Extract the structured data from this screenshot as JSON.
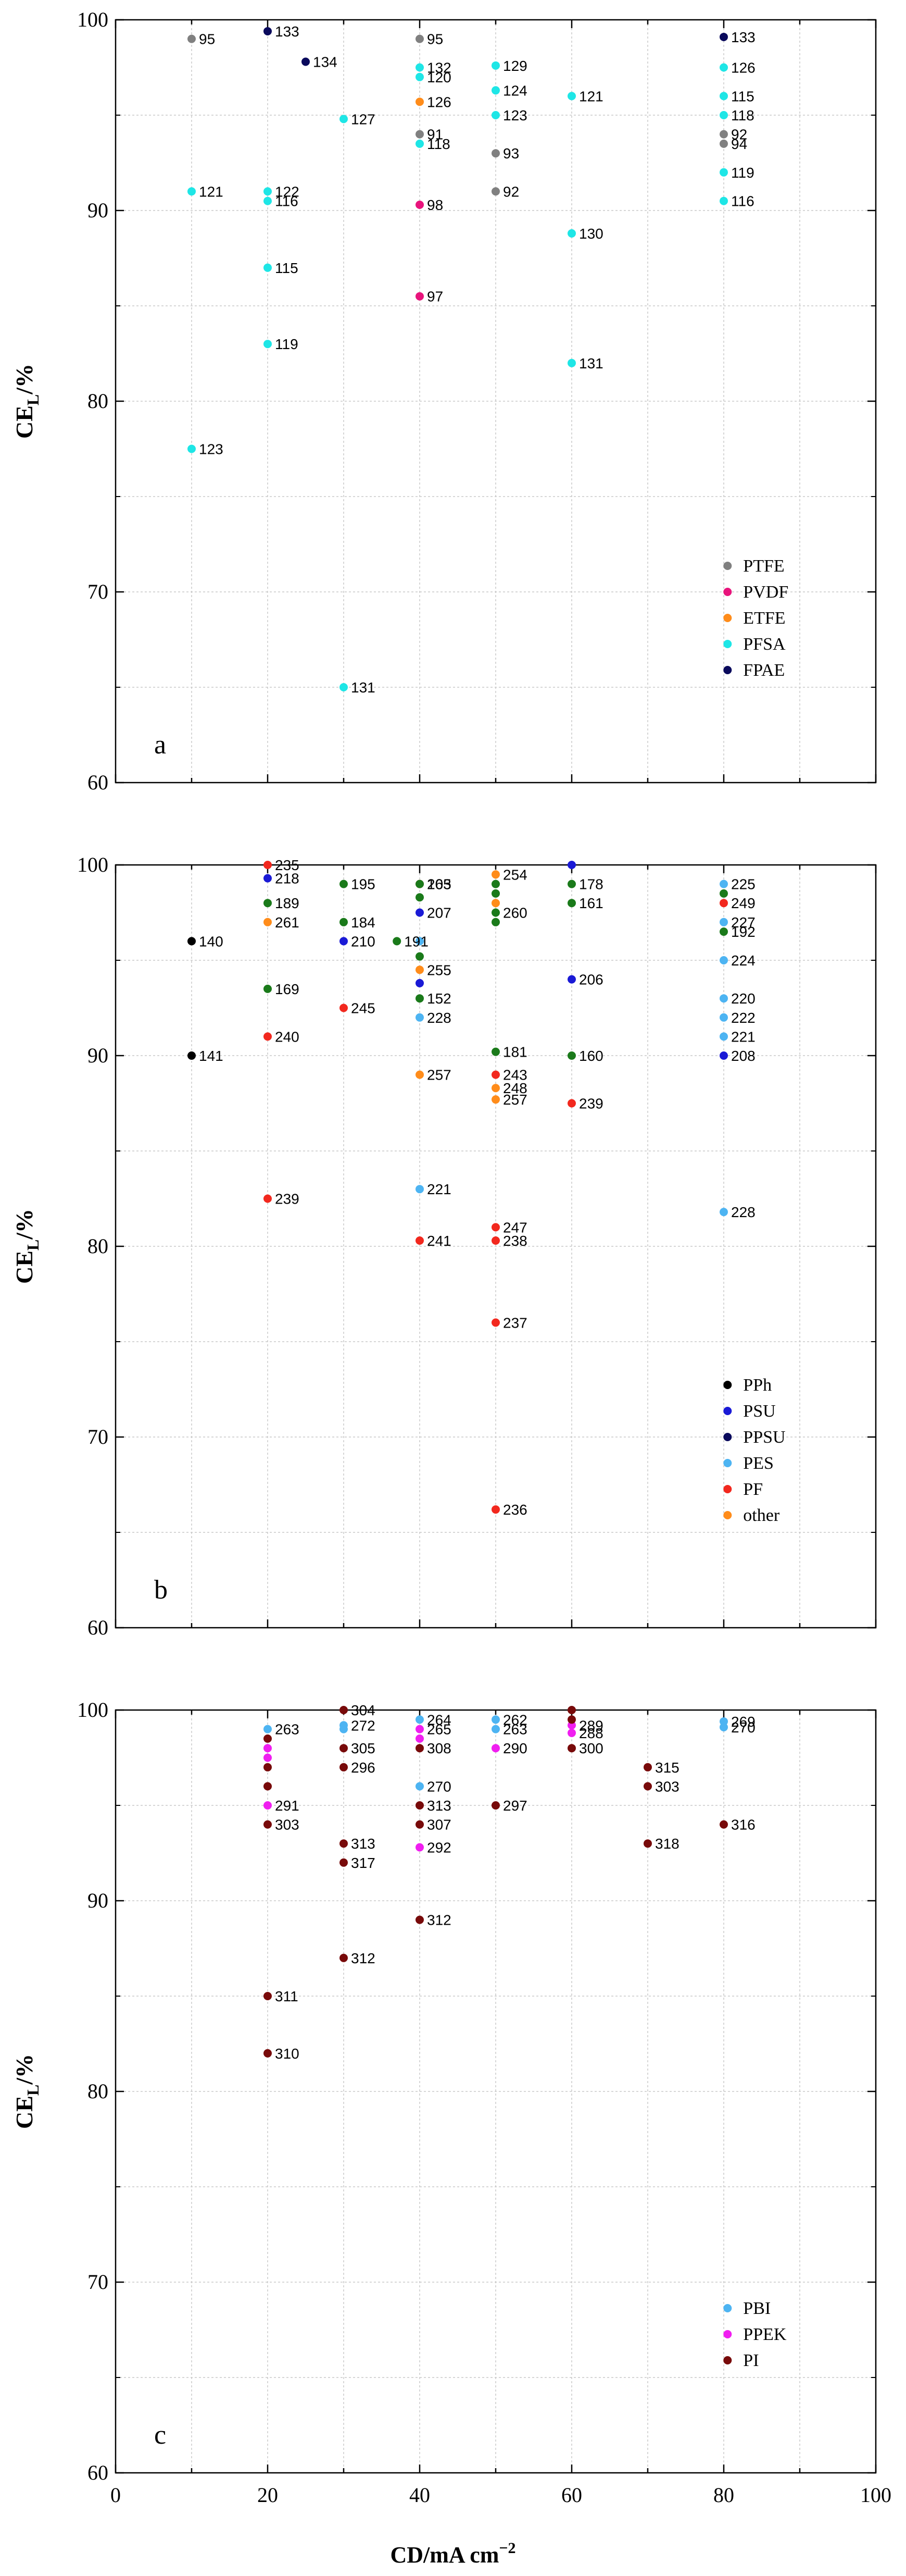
{
  "figure": {
    "xlabel": "CD/mA cm",
    "xlabel_sup": "−2",
    "xticks": [
      "0",
      "20",
      "40",
      "60",
      "80",
      "100"
    ]
  },
  "chart_data": [
    {
      "type": "scatter",
      "panel_label": "a",
      "ylabel": "CE",
      "ylabel_sub": "L",
      "ylabel_suffix": "/%",
      "xlim": [
        0,
        100
      ],
      "ylim": [
        60,
        100
      ],
      "yticks": [
        "60",
        "70",
        "80",
        "90",
        "100"
      ],
      "legend_position": "bottom-right",
      "series": [
        {
          "name": "PTFE",
          "color": "#808080",
          "points": [
            {
              "x": 10,
              "y": 99,
              "label": "95"
            },
            {
              "x": 40,
              "y": 99,
              "label": "95"
            },
            {
              "x": 40,
              "y": 94,
              "label": "91"
            },
            {
              "x": 50,
              "y": 93,
              "label": "93"
            },
            {
              "x": 50,
              "y": 91,
              "label": "92"
            },
            {
              "x": 80,
              "y": 94,
              "label": "92"
            },
            {
              "x": 80,
              "y": 93.5,
              "label": "94"
            }
          ]
        },
        {
          "name": "PVDF",
          "color": "#E8147C",
          "points": [
            {
              "x": 40,
              "y": 90.3,
              "label": "98"
            },
            {
              "x": 40,
              "y": 85.5,
              "label": "97"
            }
          ]
        },
        {
          "name": "ETFE",
          "color": "#FF8C1A",
          "points": [
            {
              "x": 40,
              "y": 95.7,
              "label": "126"
            }
          ]
        },
        {
          "name": "PFSA",
          "color": "#1EE6E6",
          "points": [
            {
              "x": 10,
              "y": 91,
              "label": "121"
            },
            {
              "x": 10,
              "y": 77.5,
              "label": "123"
            },
            {
              "x": 20,
              "y": 91,
              "label": "122"
            },
            {
              "x": 20,
              "y": 90.5,
              "label": "116"
            },
            {
              "x": 20,
              "y": 87,
              "label": "115"
            },
            {
              "x": 20,
              "y": 83,
              "label": "119"
            },
            {
              "x": 30,
              "y": 94.8,
              "label": "127"
            },
            {
              "x": 30,
              "y": 65,
              "label": "131"
            },
            {
              "x": 40,
              "y": 97.5,
              "label": "132"
            },
            {
              "x": 40,
              "y": 97,
              "label": "120"
            },
            {
              "x": 40,
              "y": 93.5,
              "label": "118"
            },
            {
              "x": 50,
              "y": 97.6,
              "label": "129"
            },
            {
              "x": 50,
              "y": 96.3,
              "label": "124"
            },
            {
              "x": 50,
              "y": 95,
              "label": "123"
            },
            {
              "x": 60,
              "y": 96,
              "label": "121"
            },
            {
              "x": 60,
              "y": 88.8,
              "label": "130"
            },
            {
              "x": 60,
              "y": 82,
              "label": "131"
            },
            {
              "x": 80,
              "y": 97.5,
              "label": "126"
            },
            {
              "x": 80,
              "y": 96,
              "label": "115"
            },
            {
              "x": 80,
              "y": 95,
              "label": "118"
            },
            {
              "x": 80,
              "y": 92,
              "label": "119"
            },
            {
              "x": 80,
              "y": 90.5,
              "label": "116"
            }
          ]
        },
        {
          "name": "FPAE",
          "color": "#0A0A5C",
          "points": [
            {
              "x": 20,
              "y": 99.4,
              "label": "133"
            },
            {
              "x": 25,
              "y": 97.8,
              "label": "134"
            },
            {
              "x": 80,
              "y": 99.1,
              "label": "133"
            }
          ]
        }
      ]
    },
    {
      "type": "scatter",
      "panel_label": "b",
      "ylabel": "CE",
      "ylabel_sub": "L",
      "ylabel_suffix": "/%",
      "xlim": [
        0,
        100
      ],
      "ylim": [
        60,
        100
      ],
      "yticks": [
        "60",
        "70",
        "80",
        "90",
        "100"
      ],
      "legend_position": "bottom-right",
      "series": [
        {
          "name": "PPh",
          "color": "#000000",
          "points": [
            {
              "x": 10,
              "y": 96,
              "label": "140"
            },
            {
              "x": 10,
              "y": 90,
              "label": "141"
            }
          ]
        },
        {
          "name": "PSU",
          "color": "#1A1AD6",
          "points": [
            {
              "x": 20,
              "y": 99.3,
              "label": "218"
            },
            {
              "x": 30,
              "y": 96,
              "label": "210"
            },
            {
              "x": 40,
              "y": 97.5,
              "label": "207"
            },
            {
              "x": 40,
              "y": 93.8,
              "label": ""
            },
            {
              "x": 60,
              "y": 100,
              "label": ""
            },
            {
              "x": 60,
              "y": 94,
              "label": "206"
            },
            {
              "x": 80,
              "y": 90,
              "label": "208"
            }
          ]
        },
        {
          "name": "PPSU",
          "color": "#0A0A5C",
          "points": []
        },
        {
          "name": "PES",
          "color": "#4DB4F2",
          "points": [
            {
              "x": 40,
              "y": 96,
              "label": ""
            },
            {
              "x": 40,
              "y": 92,
              "label": "228"
            },
            {
              "x": 40,
              "y": 83,
              "label": "221"
            },
            {
              "x": 80,
              "y": 99,
              "label": "225"
            },
            {
              "x": 80,
              "y": 97,
              "label": "227"
            },
            {
              "x": 80,
              "y": 95,
              "label": "224"
            },
            {
              "x": 80,
              "y": 93,
              "label": "220"
            },
            {
              "x": 80,
              "y": 92,
              "label": "222"
            },
            {
              "x": 80,
              "y": 91,
              "label": "221"
            },
            {
              "x": 80,
              "y": 81.8,
              "label": "228"
            }
          ]
        },
        {
          "name": "PF",
          "color": "#F2281E",
          "points": [
            {
              "x": 20,
              "y": 100,
              "label": "235"
            },
            {
              "x": 20,
              "y": 91,
              "label": "240"
            },
            {
              "x": 20,
              "y": 82.5,
              "label": "239"
            },
            {
              "x": 30,
              "y": 92.5,
              "label": "245"
            },
            {
              "x": 40,
              "y": 99,
              "label": "205"
            },
            {
              "x": 40,
              "y": 80.3,
              "label": "241"
            },
            {
              "x": 50,
              "y": 89,
              "label": "243"
            },
            {
              "x": 50,
              "y": 81,
              "label": "247"
            },
            {
              "x": 50,
              "y": 80.3,
              "label": "238"
            },
            {
              "x": 50,
              "y": 76,
              "label": "237"
            },
            {
              "x": 50,
              "y": 66.2,
              "label": "236"
            },
            {
              "x": 60,
              "y": 87.5,
              "label": "239"
            },
            {
              "x": 80,
              "y": 98,
              "label": "249"
            }
          ]
        },
        {
          "name": "other",
          "color": "#FF8C1A",
          "points": [
            {
              "x": 20,
              "y": 97,
              "label": "261"
            },
            {
              "x": 40,
              "y": 94.5,
              "label": "255"
            },
            {
              "x": 40,
              "y": 89,
              "label": "257"
            },
            {
              "x": 50,
              "y": 99.5,
              "label": "254"
            },
            {
              "x": 50,
              "y": 98,
              "label": ""
            },
            {
              "x": 50,
              "y": 88.3,
              "label": "248"
            },
            {
              "x": 50,
              "y": 87.7,
              "label": "257"
            }
          ]
        },
        {
          "name": "",
          "color": "#1A7A1A",
          "points": [
            {
              "x": 20,
              "y": 98,
              "label": "189"
            },
            {
              "x": 20,
              "y": 93.5,
              "label": "169"
            },
            {
              "x": 30,
              "y": 99,
              "label": "195"
            },
            {
              "x": 30,
              "y": 97,
              "label": "184"
            },
            {
              "x": 37,
              "y": 96,
              "label": "191"
            },
            {
              "x": 40,
              "y": 99,
              "label": "163"
            },
            {
              "x": 40,
              "y": 98.3,
              "label": ""
            },
            {
              "x": 40,
              "y": 95.2,
              "label": ""
            },
            {
              "x": 40,
              "y": 93,
              "label": "152"
            },
            {
              "x": 50,
              "y": 99,
              "label": ""
            },
            {
              "x": 50,
              "y": 98.5,
              "label": ""
            },
            {
              "x": 50,
              "y": 97.5,
              "label": "260"
            },
            {
              "x": 50,
              "y": 97,
              "label": ""
            },
            {
              "x": 50,
              "y": 90.2,
              "label": "181"
            },
            {
              "x": 60,
              "y": 99,
              "label": "178"
            },
            {
              "x": 60,
              "y": 98,
              "label": "161"
            },
            {
              "x": 60,
              "y": 90,
              "label": "160"
            },
            {
              "x": 80,
              "y": 98.5,
              "label": ""
            },
            {
              "x": 80,
              "y": 96.5,
              "label": "192"
            }
          ]
        }
      ]
    },
    {
      "type": "scatter",
      "panel_label": "c",
      "ylabel": "CE",
      "ylabel_sub": "L",
      "ylabel_suffix": "/%",
      "xlim": [
        0,
        100
      ],
      "ylim": [
        60,
        100
      ],
      "yticks": [
        "60",
        "70",
        "80",
        "90",
        "100"
      ],
      "legend_position": "bottom-right",
      "series": [
        {
          "name": "PBI",
          "color": "#4DB4F2",
          "points": [
            {
              "x": 20,
              "y": 99,
              "label": "263"
            },
            {
              "x": 30,
              "y": 99.2,
              "label": "272"
            },
            {
              "x": 30,
              "y": 99,
              "label": ""
            },
            {
              "x": 40,
              "y": 99.5,
              "label": "264"
            },
            {
              "x": 40,
              "y": 96,
              "label": "270"
            },
            {
              "x": 50,
              "y": 99.5,
              "label": "262"
            },
            {
              "x": 50,
              "y": 99,
              "label": "263"
            },
            {
              "x": 80,
              "y": 99.4,
              "label": "269"
            },
            {
              "x": 80,
              "y": 99.1,
              "label": "270"
            }
          ]
        },
        {
          "name": "PPEK",
          "color": "#F01EF0",
          "points": [
            {
              "x": 20,
              "y": 98,
              "label": ""
            },
            {
              "x": 20,
              "y": 97.5,
              "label": ""
            },
            {
              "x": 20,
              "y": 95,
              "label": "291"
            },
            {
              "x": 40,
              "y": 99,
              "label": "265"
            },
            {
              "x": 40,
              "y": 98.5,
              "label": ""
            },
            {
              "x": 40,
              "y": 92.8,
              "label": "292"
            },
            {
              "x": 50,
              "y": 98,
              "label": "290"
            },
            {
              "x": 60,
              "y": 99.2,
              "label": "289"
            },
            {
              "x": 60,
              "y": 98.8,
              "label": "288"
            }
          ]
        },
        {
          "name": "PI",
          "color": "#780A0A",
          "points": [
            {
              "x": 20,
              "y": 98.5,
              "label": ""
            },
            {
              "x": 20,
              "y": 97,
              "label": ""
            },
            {
              "x": 20,
              "y": 96,
              "label": ""
            },
            {
              "x": 20,
              "y": 94,
              "label": "303"
            },
            {
              "x": 20,
              "y": 85,
              "label": "311"
            },
            {
              "x": 20,
              "y": 82,
              "label": "310"
            },
            {
              "x": 30,
              "y": 100,
              "label": "304"
            },
            {
              "x": 30,
              "y": 98,
              "label": "305"
            },
            {
              "x": 30,
              "y": 97,
              "label": "296"
            },
            {
              "x": 30,
              "y": 93,
              "label": "313"
            },
            {
              "x": 30,
              "y": 92,
              "label": "317"
            },
            {
              "x": 30,
              "y": 87,
              "label": "312"
            },
            {
              "x": 40,
              "y": 98,
              "label": "308"
            },
            {
              "x": 40,
              "y": 95,
              "label": "313"
            },
            {
              "x": 40,
              "y": 94,
              "label": "307"
            },
            {
              "x": 40,
              "y": 89,
              "label": "312"
            },
            {
              "x": 50,
              "y": 95,
              "label": "297"
            },
            {
              "x": 60,
              "y": 100,
              "label": ""
            },
            {
              "x": 60,
              "y": 99.5,
              "label": ""
            },
            {
              "x": 60,
              "y": 98,
              "label": "300"
            },
            {
              "x": 70,
              "y": 97,
              "label": "315"
            },
            {
              "x": 70,
              "y": 96,
              "label": "303"
            },
            {
              "x": 70,
              "y": 93,
              "label": "318"
            },
            {
              "x": 80,
              "y": 94,
              "label": "316"
            }
          ]
        }
      ]
    }
  ]
}
